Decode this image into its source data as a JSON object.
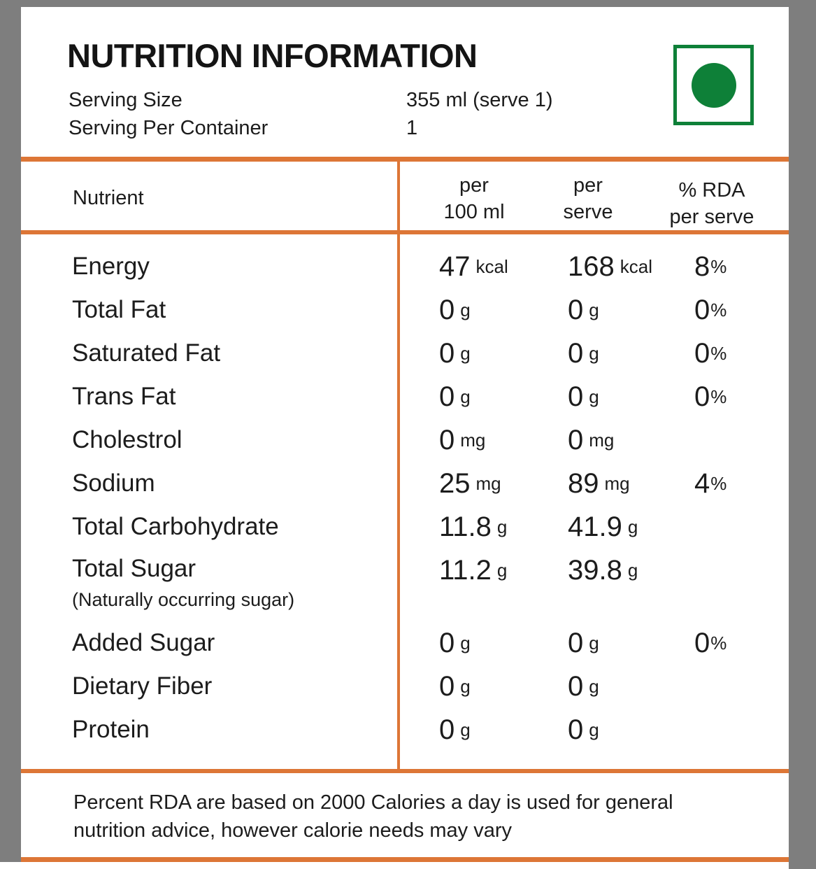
{
  "meta": {
    "title": "NUTRITION INFORMATION"
  },
  "serving": {
    "size_label": "Serving Size",
    "size_value": "355 ml (serve 1)",
    "container_label": "Serving Per Container",
    "container_value": "1"
  },
  "veg_mark": {
    "meaning": "vegetarian-mark",
    "color": "#0E8038"
  },
  "table": {
    "header": {
      "nutrient": "Nutrient",
      "per_100": [
        "per",
        "100 ml"
      ],
      "per_serve": [
        "per",
        "serve"
      ],
      "rda": [
        "% RDA",
        "per serve"
      ]
    },
    "rows": [
      {
        "label": "Energy",
        "note": "",
        "p100_v": "47",
        "p100_u": "kcal",
        "srv_v": "168",
        "srv_u": "kcal",
        "rda_v": "8",
        "rda_u": "%"
      },
      {
        "label": "Total Fat",
        "note": "",
        "p100_v": "0",
        "p100_u": "g",
        "srv_v": "0",
        "srv_u": "g",
        "rda_v": "0",
        "rda_u": "%"
      },
      {
        "label": "Saturated Fat",
        "note": "",
        "p100_v": "0",
        "p100_u": "g",
        "srv_v": "0",
        "srv_u": "g",
        "rda_v": "0",
        "rda_u": "%"
      },
      {
        "label": "Trans Fat",
        "note": "",
        "p100_v": "0",
        "p100_u": "g",
        "srv_v": "0",
        "srv_u": "g",
        "rda_v": "0",
        "rda_u": "%"
      },
      {
        "label": "Cholestrol",
        "note": "",
        "p100_v": "0",
        "p100_u": "mg",
        "srv_v": "0",
        "srv_u": "mg",
        "rda_v": "",
        "rda_u": ""
      },
      {
        "label": "Sodium",
        "note": "",
        "p100_v": "25",
        "p100_u": "mg",
        "srv_v": "89",
        "srv_u": "mg",
        "rda_v": "4",
        "rda_u": "%"
      },
      {
        "label": "Total Carbohydrate",
        "note": "",
        "p100_v": "11.8",
        "p100_u": "g",
        "srv_v": "41.9",
        "srv_u": "g",
        "rda_v": "",
        "rda_u": ""
      },
      {
        "label": "Total Sugar",
        "note": "(Naturally occurring sugar)",
        "p100_v": "11.2",
        "p100_u": "g",
        "srv_v": "39.8",
        "srv_u": "g",
        "rda_v": "",
        "rda_u": ""
      },
      {
        "label": "Added Sugar",
        "note": "",
        "p100_v": "0",
        "p100_u": "g",
        "srv_v": "0",
        "srv_u": "g",
        "rda_v": "0",
        "rda_u": "%"
      },
      {
        "label": "Dietary Fiber",
        "note": "",
        "p100_v": "0",
        "p100_u": "g",
        "srv_v": "0",
        "srv_u": "g",
        "rda_v": "",
        "rda_u": ""
      },
      {
        "label": "Protein",
        "note": "",
        "p100_v": "0",
        "p100_u": "g",
        "srv_v": "0",
        "srv_u": "g",
        "rda_v": "",
        "rda_u": ""
      }
    ]
  },
  "footer": {
    "lines": [
      "Percent RDA are based on 2000 Calories a day is used for general",
      "nutrition advice, however calorie needs may vary"
    ]
  },
  "colors": {
    "accent_orange": "#DD7636",
    "veg_green": "#0E8038",
    "frame_gray": "#7E7E7E",
    "text": "#1C1C1C"
  }
}
